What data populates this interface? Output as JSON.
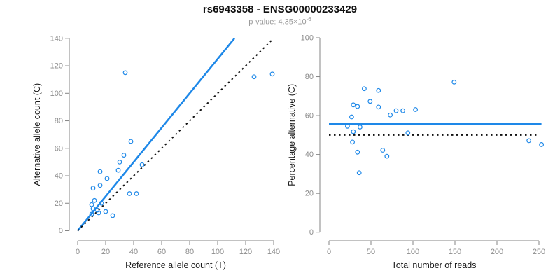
{
  "header": {
    "title": "rs6943358 - ENSG00000233429",
    "pvalue_label": "p-value: ",
    "pvalue_base": "4.35×10",
    "pvalue_exponent": "-6"
  },
  "colors": {
    "accent_blue": "#1E88E8",
    "dotted_black": "#111111",
    "axis_gray": "#858585",
    "tick_label_gray": "#8C8C8C",
    "axis_title_black": "#1a1a1a"
  },
  "chart_data": [
    {
      "type": "scatter",
      "panel": "left",
      "xlabel": "Reference allele count (T)",
      "ylabel": "Alternative allele count (C)",
      "xlim": [
        0,
        140
      ],
      "ylim": [
        0,
        140
      ],
      "xticks": [
        0,
        20,
        40,
        60,
        80,
        100,
        120,
        140
      ],
      "yticks": [
        0,
        20,
        40,
        60,
        80,
        100,
        120,
        140
      ],
      "grid": false,
      "legend": "none",
      "points": [
        [
          10,
          12
        ],
        [
          11,
          16
        ],
        [
          10,
          19
        ],
        [
          12,
          22
        ],
        [
          14,
          15
        ],
        [
          17,
          20
        ],
        [
          11,
          31
        ],
        [
          16,
          33
        ],
        [
          16,
          43
        ],
        [
          21,
          38
        ],
        [
          29,
          44
        ],
        [
          30,
          50
        ],
        [
          33,
          55
        ],
        [
          38,
          65
        ],
        [
          34,
          115
        ],
        [
          46,
          48
        ],
        [
          15,
          13
        ],
        [
          20,
          14
        ],
        [
          37,
          27
        ],
        [
          42,
          27
        ],
        [
          25,
          11
        ],
        [
          126,
          112
        ],
        [
          139,
          114
        ]
      ],
      "lines": [
        {
          "name": "fit-line",
          "style": "solid",
          "color": "#1E88E8",
          "points": [
            [
              0,
              0
            ],
            [
              112,
              140
            ]
          ]
        },
        {
          "name": "identity-line",
          "style": "dotted",
          "color": "#111111",
          "points": [
            [
              0,
              0
            ],
            [
              139,
              139
            ]
          ]
        }
      ]
    },
    {
      "type": "scatter",
      "panel": "right",
      "xlabel": "Total number of reads",
      "ylabel": "Percentage alternative (C)",
      "xlim": [
        0,
        250
      ],
      "ylim": [
        0,
        100
      ],
      "xticks": [
        0,
        50,
        100,
        150,
        200,
        250
      ],
      "yticks": [
        0,
        20,
        40,
        60,
        80,
        100
      ],
      "grid": false,
      "legend": "none",
      "points": [
        [
          22,
          54.5
        ],
        [
          27,
          59.3
        ],
        [
          29,
          65.5
        ],
        [
          34,
          64.7
        ],
        [
          29,
          51.7
        ],
        [
          37,
          54.1
        ],
        [
          42,
          73.8
        ],
        [
          49,
          67.3
        ],
        [
          59,
          72.9
        ],
        [
          59,
          64.4
        ],
        [
          73,
          60.3
        ],
        [
          80,
          62.5
        ],
        [
          88,
          62.5
        ],
        [
          103,
          63.1
        ],
        [
          149,
          77.2
        ],
        [
          94,
          51.1
        ],
        [
          28,
          46.4
        ],
        [
          34,
          41.2
        ],
        [
          64,
          42.2
        ],
        [
          69,
          39.1
        ],
        [
          36,
          30.6
        ],
        [
          238,
          47.1
        ],
        [
          253,
          45.1
        ]
      ],
      "lines": [
        {
          "name": "mean-percentage-line",
          "style": "solid",
          "color": "#1E88E8",
          "points": [
            [
              0,
              55.8
            ],
            [
              253,
              55.8
            ]
          ]
        },
        {
          "name": "fifty-percent-line",
          "style": "dotted",
          "color": "#111111",
          "points": [
            [
              0,
              50
            ],
            [
              247,
              50
            ]
          ]
        }
      ]
    }
  ]
}
